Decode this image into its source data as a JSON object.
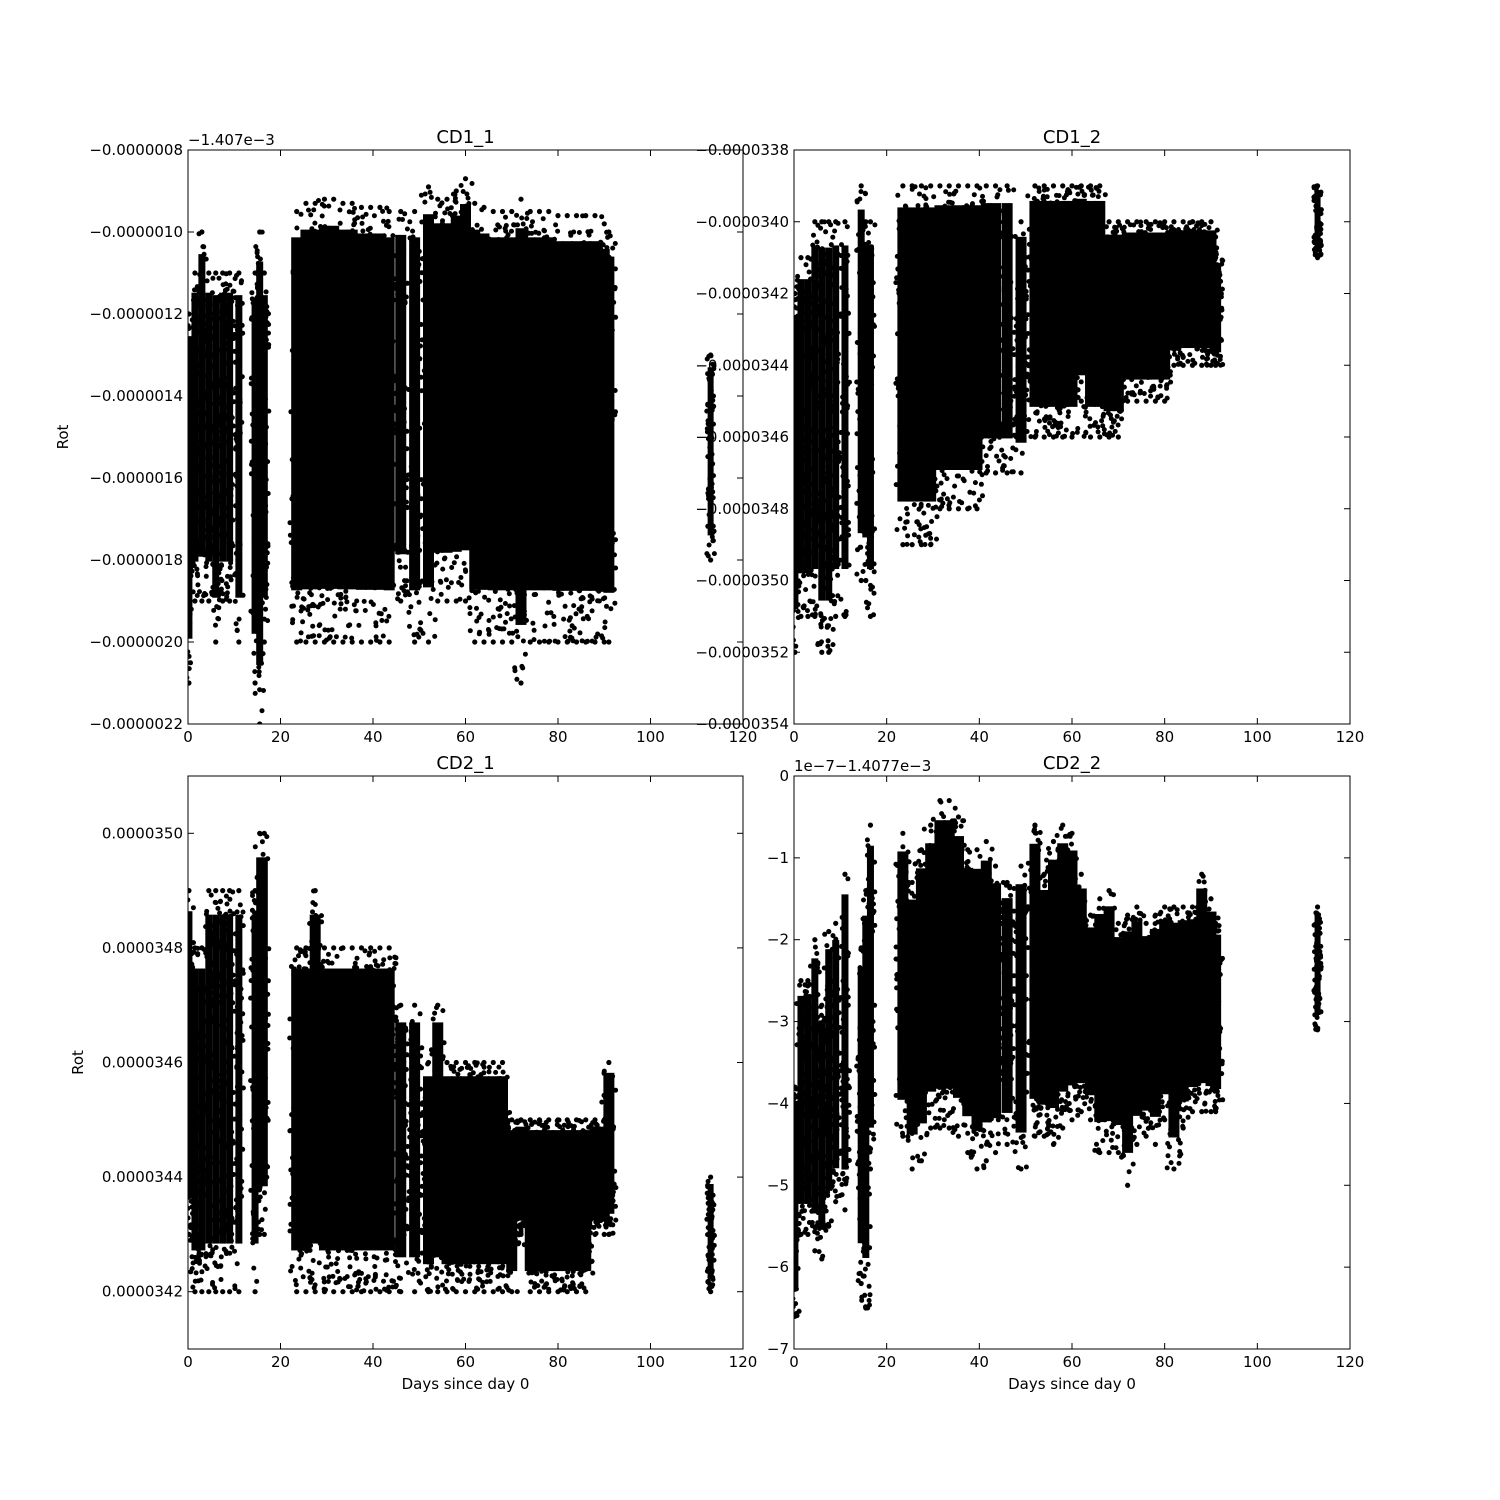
{
  "chart_data": [
    {
      "type": "scatter",
      "title": "CD1_1",
      "xlabel": "",
      "ylabel": "Rot",
      "xlim": [
        0,
        120
      ],
      "ylim": [
        -2.2e-06,
        -8e-07
      ],
      "x_ticks": [
        "0",
        "20",
        "40",
        "60",
        "80",
        "100",
        "120"
      ],
      "y_ticks": [
        "−0.0000022",
        "−0.0000020",
        "−0.0000018",
        "−0.0000016",
        "−0.0000014",
        "−0.0000012",
        "−0.0000010",
        "−0.0000008"
      ],
      "y_offset_label": "−1.407e−3",
      "marker_color": "#000000",
      "series": [
        {
          "x": [
            0.2,
            1.5,
            3,
            4.5,
            6,
            7.5,
            9,
            11,
            14.5,
            15.5,
            16.5,
            23.5,
            25.5,
            27.5,
            29.5,
            31.5,
            33.5,
            35.5,
            37.5,
            39.5,
            41.5,
            43.5,
            46,
            49,
            52,
            54,
            56,
            58,
            60,
            62,
            64,
            66,
            68,
            70,
            72,
            74,
            76,
            78,
            80,
            82,
            84,
            86,
            88,
            90,
            91,
            113
          ],
          "y_min": [
            -2.1e-06,
            -1.9e-06,
            -1.9e-06,
            -1.9e-06,
            -2e-06,
            -1.9e-06,
            -1.9e-06,
            -2e-06,
            -2.1e-06,
            -2.2e-06,
            -2e-06,
            -2e-06,
            -2e-06,
            -2e-06,
            -2e-06,
            -2e-06,
            -2e-06,
            -2e-06,
            -2e-06,
            -2e-06,
            -2e-06,
            -2e-06,
            -1.9e-06,
            -2e-06,
            -2e-06,
            -1.9e-06,
            -1.9e-06,
            -1.9e-06,
            -1.9e-06,
            -2e-06,
            -2e-06,
            -2e-06,
            -2e-06,
            -2e-06,
            -2.1e-06,
            -2e-06,
            -2e-06,
            -2e-06,
            -2e-06,
            -2e-06,
            -2e-06,
            -2e-06,
            -2e-06,
            -2e-06,
            -2e-06,
            -1.8e-06
          ],
          "y_max": [
            -1.2e-06,
            -1.1e-06,
            -1e-06,
            -1.1e-06,
            -1.1e-06,
            -1.1e-06,
            -1.1e-06,
            -1.1e-06,
            -1.1e-06,
            -1e-06,
            -1.1e-06,
            -9.5e-07,
            -9.3e-07,
            -9.3e-07,
            -9.2e-07,
            -9.2e-07,
            -9.3e-07,
            -9.3e-07,
            -9.4e-07,
            -9.4e-07,
            -9.4e-07,
            -9.5e-07,
            -9.5e-07,
            -9.5e-07,
            -8.9e-07,
            -9.2e-07,
            -9.2e-07,
            -9e-07,
            -8.7e-07,
            -9.3e-07,
            -9.4e-07,
            -9.5e-07,
            -9.5e-07,
            -9.5e-07,
            -9.2e-07,
            -9.5e-07,
            -9.5e-07,
            -9.5e-07,
            -9.6e-07,
            -9.6e-07,
            -9.6e-07,
            -9.6e-07,
            -9.6e-07,
            -9.8e-07,
            -1e-06,
            -1.3e-06
          ]
        }
      ]
    },
    {
      "type": "scatter",
      "title": "CD1_2",
      "xlabel": "",
      "ylabel": "",
      "xlim": [
        0,
        120
      ],
      "ylim": [
        -3.54e-05,
        -3.38e-05
      ],
      "x_ticks": [
        "0",
        "20",
        "40",
        "60",
        "80",
        "100",
        "120"
      ],
      "y_ticks": [
        "−0.0000354",
        "−0.0000352",
        "−0.0000350",
        "−0.0000348",
        "−0.0000346",
        "−0.0000344",
        "−0.0000342",
        "−0.0000340",
        "−0.0000338"
      ],
      "y_offset_label": "",
      "marker_color": "#000000",
      "series": [
        {
          "x": [
            0.2,
            1.5,
            3,
            4.5,
            6,
            7.5,
            9,
            11,
            14.5,
            15.5,
            16.5,
            23.5,
            25.5,
            27.5,
            29.5,
            31.5,
            33.5,
            35.5,
            37.5,
            39.5,
            41.5,
            43.5,
            46,
            49,
            52,
            54,
            56,
            58,
            60,
            62,
            64,
            66,
            68,
            70,
            72,
            74,
            76,
            78,
            80,
            82,
            84,
            86,
            88,
            90,
            91,
            113
          ],
          "y_min": [
            -3.52e-05,
            -3.51e-05,
            -3.51e-05,
            -3.51e-05,
            -3.52e-05,
            -3.52e-05,
            -3.51e-05,
            -3.51e-05,
            -3.5e-05,
            -3.5e-05,
            -3.51e-05,
            -3.49e-05,
            -3.49e-05,
            -3.49e-05,
            -3.49e-05,
            -3.48e-05,
            -3.48e-05,
            -3.48e-05,
            -3.48e-05,
            -3.48e-05,
            -3.47e-05,
            -3.47e-05,
            -3.47e-05,
            -3.47e-05,
            -3.46e-05,
            -3.46e-05,
            -3.46e-05,
            -3.46e-05,
            -3.46e-05,
            -3.45e-05,
            -3.46e-05,
            -3.46e-05,
            -3.46e-05,
            -3.46e-05,
            -3.45e-05,
            -3.45e-05,
            -3.45e-05,
            -3.45e-05,
            -3.45e-05,
            -3.44e-05,
            -3.44e-05,
            -3.44e-05,
            -3.44e-05,
            -3.44e-05,
            -3.44e-05,
            -3.41e-05
          ],
          "y_max": [
            -3.42e-05,
            -3.41e-05,
            -3.41e-05,
            -3.4e-05,
            -3.4e-05,
            -3.4e-05,
            -3.4e-05,
            -3.4e-05,
            -3.39e-05,
            -3.4e-05,
            -3.4e-05,
            -3.39e-05,
            -3.39e-05,
            -3.39e-05,
            -3.39e-05,
            -3.39e-05,
            -3.39e-05,
            -3.39e-05,
            -3.39e-05,
            -3.39e-05,
            -3.39e-05,
            -3.39e-05,
            -3.39e-05,
            -3.4e-05,
            -3.39e-05,
            -3.39e-05,
            -3.39e-05,
            -3.39e-05,
            -3.39e-05,
            -3.39e-05,
            -3.39e-05,
            -3.39e-05,
            -3.4e-05,
            -3.4e-05,
            -3.4e-05,
            -3.4e-05,
            -3.4e-05,
            -3.4e-05,
            -3.4e-05,
            -3.4e-05,
            -3.4e-05,
            -3.4e-05,
            -3.4e-05,
            -3.4e-05,
            -3.41e-05,
            -3.39e-05
          ]
        }
      ]
    },
    {
      "type": "scatter",
      "title": "CD2_1",
      "xlabel": "Days since day 0",
      "ylabel": "Rot",
      "xlim": [
        0,
        120
      ],
      "ylim": [
        3.41e-05,
        3.51e-05
      ],
      "x_ticks": [
        "0",
        "20",
        "40",
        "60",
        "80",
        "100",
        "120"
      ],
      "y_ticks": [
        "0.0000342",
        "0.0000344",
        "0.0000346",
        "0.0000348",
        "0.0000350"
      ],
      "y_offset_label": "",
      "marker_color": "#000000",
      "series": [
        {
          "x": [
            0.2,
            1.5,
            3,
            4.5,
            6,
            7.5,
            9,
            11,
            14.5,
            15.5,
            16.5,
            23.5,
            25.5,
            27.5,
            29.5,
            31.5,
            33.5,
            35.5,
            37.5,
            39.5,
            41.5,
            43.5,
            46,
            49,
            52,
            54,
            56,
            58,
            60,
            62,
            64,
            66,
            68,
            70,
            72,
            74,
            76,
            78,
            80,
            82,
            84,
            86,
            88,
            90,
            91,
            113
          ],
          "y_min": [
            3.43e-05,
            3.42e-05,
            3.42e-05,
            3.42e-05,
            3.42e-05,
            3.42e-05,
            3.42e-05,
            3.42e-05,
            3.42e-05,
            3.43e-05,
            3.43e-05,
            3.42e-05,
            3.42e-05,
            3.42e-05,
            3.42e-05,
            3.42e-05,
            3.42e-05,
            3.42e-05,
            3.42e-05,
            3.42e-05,
            3.42e-05,
            3.42e-05,
            3.42e-05,
            3.42e-05,
            3.42e-05,
            3.42e-05,
            3.42e-05,
            3.42e-05,
            3.42e-05,
            3.42e-05,
            3.42e-05,
            3.42e-05,
            3.42e-05,
            3.42e-05,
            3.43e-05,
            3.42e-05,
            3.42e-05,
            3.42e-05,
            3.42e-05,
            3.42e-05,
            3.42e-05,
            3.42e-05,
            3.43e-05,
            3.43e-05,
            3.43e-05,
            3.42e-05
          ],
          "y_max": [
            3.49e-05,
            3.48e-05,
            3.48e-05,
            3.49e-05,
            3.49e-05,
            3.49e-05,
            3.49e-05,
            3.49e-05,
            3.49e-05,
            3.5e-05,
            3.5e-05,
            3.48e-05,
            3.48e-05,
            3.49e-05,
            3.48e-05,
            3.48e-05,
            3.48e-05,
            3.48e-05,
            3.48e-05,
            3.48e-05,
            3.48e-05,
            3.48e-05,
            3.47e-05,
            3.47e-05,
            3.46e-05,
            3.47e-05,
            3.46e-05,
            3.46e-05,
            3.46e-05,
            3.46e-05,
            3.46e-05,
            3.46e-05,
            3.46e-05,
            3.45e-05,
            3.45e-05,
            3.45e-05,
            3.45e-05,
            3.45e-05,
            3.45e-05,
            3.45e-05,
            3.45e-05,
            3.45e-05,
            3.45e-05,
            3.45e-05,
            3.46e-05,
            3.44e-05
          ]
        }
      ]
    },
    {
      "type": "scatter",
      "title": "CD2_2",
      "xlabel": "Days since day 0",
      "ylabel": "",
      "xlim": [
        0,
        120
      ],
      "ylim": [
        -7,
        0
      ],
      "x_ticks": [
        "0",
        "20",
        "40",
        "60",
        "80",
        "100",
        "120"
      ],
      "y_ticks": [
        "−7",
        "−6",
        "−5",
        "−4",
        "−3",
        "−2",
        "−1",
        "0"
      ],
      "y_offset_label": "1e−7−1.4077e−3",
      "marker_color": "#000000",
      "series": [
        {
          "x": [
            0.2,
            1.5,
            3,
            4.5,
            6,
            7.5,
            9,
            11,
            14.5,
            15.5,
            16.5,
            23.5,
            25.5,
            27.5,
            29.5,
            31.5,
            33.5,
            35.5,
            37.5,
            39.5,
            41.5,
            43.5,
            46,
            49,
            52,
            54,
            56,
            58,
            60,
            62,
            64,
            66,
            68,
            70,
            72,
            74,
            76,
            78,
            80,
            82,
            84,
            86,
            88,
            90,
            91,
            113
          ],
          "y_min": [
            -6.6,
            -5.6,
            -5.6,
            -5.8,
            -5.9,
            -5.5,
            -5.2,
            -5.3,
            -6.2,
            -6.5,
            -4.8,
            -4.4,
            -4.8,
            -4.7,
            -4.3,
            -4.3,
            -4.3,
            -4.4,
            -4.6,
            -4.8,
            -4.7,
            -4.6,
            -4.5,
            -4.8,
            -4.4,
            -4.4,
            -4.5,
            -4.3,
            -4.2,
            -4.1,
            -4.2,
            -4.6,
            -4.6,
            -4.6,
            -5.0,
            -4.5,
            -4.4,
            -4.5,
            -4.2,
            -4.8,
            -4.3,
            -4.1,
            -4.1,
            -4.1,
            -4.1,
            -3.1
          ],
          "y_max": [
            -3.8,
            -2.5,
            -2.5,
            -2.0,
            -2.8,
            -1.9,
            -1.8,
            -1.2,
            -2.1,
            -1.4,
            -0.6,
            -0.7,
            -1.3,
            -0.9,
            -0.6,
            -0.3,
            -0.3,
            -0.5,
            -0.9,
            -0.9,
            -0.8,
            -1.1,
            -1.3,
            -1.1,
            -0.6,
            -1.2,
            -0.8,
            -0.6,
            -0.7,
            -1.2,
            -1.7,
            -1.5,
            -1.4,
            -1.8,
            -1.7,
            -1.6,
            -1.8,
            -1.7,
            -1.6,
            -1.6,
            -1.6,
            -1.6,
            -1.2,
            -1.5,
            -1.8,
            -1.6
          ]
        }
      ]
    }
  ]
}
